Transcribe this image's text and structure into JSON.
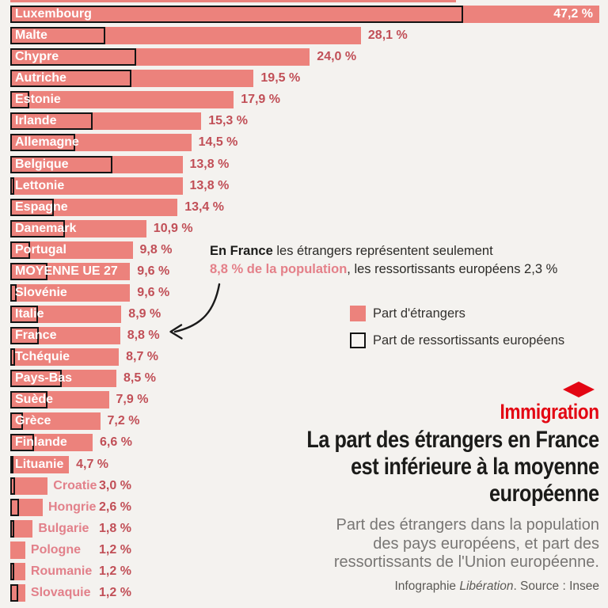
{
  "colors": {
    "background": "#f4f2ef",
    "bar_pink": "#ec827c",
    "bar_label_white": "#ffffff",
    "value_label": "#c14f57",
    "outline_black": "#141414",
    "small_country_label": "#e2808a",
    "accent_red": "#e30613",
    "title_black": "#1b1b19",
    "subtitle_gray": "#787674",
    "credit_gray": "#5b5955"
  },
  "chart_data": {
    "type": "bar",
    "orientation": "horizontal",
    "title": "Part des étrangers dans la population des pays européens, et part des ressortissants de l'Union européenne",
    "xlabel": "",
    "ylabel": "",
    "unit": "%",
    "xlim": [
      0,
      47.2
    ],
    "grid": false,
    "legend_position": "middle-right",
    "categories": [
      "Luxembourg",
      "Malte",
      "Chypre",
      "Autriche",
      "Estonie",
      "Irlande",
      "Allemagne",
      "Belgique",
      "Lettonie",
      "Espagne",
      "Danemark",
      "Portugal",
      "MOYENNE UE 27",
      "Slovénie",
      "Italie",
      "France",
      "Tchéquie",
      "Pays-Bas",
      "Suède",
      "Grèce",
      "Finlande",
      "Lituanie",
      "Croatie",
      "Hongrie",
      "Bulgarie",
      "Pologne",
      "Roumanie",
      "Slovaquie"
    ],
    "series": [
      {
        "name": "Part d'étrangers",
        "values": [
          47.2,
          28.1,
          24.0,
          19.5,
          17.9,
          15.3,
          14.5,
          13.8,
          13.8,
          13.4,
          10.9,
          9.8,
          9.6,
          9.6,
          8.9,
          8.8,
          8.7,
          8.5,
          7.9,
          7.2,
          6.6,
          4.7,
          3.0,
          2.6,
          1.8,
          1.2,
          1.2,
          1.2
        ]
      },
      {
        "name": "Part de ressortissants européens",
        "values": [
          36.3,
          7.6,
          10.1,
          9.7,
          1.5,
          6.6,
          5.2,
          8.2,
          0.3,
          3.5,
          4.4,
          1.6,
          3.0,
          0.5,
          2.2,
          2.3,
          0.4,
          4.1,
          3.0,
          1.0,
          1.9,
          0.2,
          0.4,
          0.7,
          0.3,
          null,
          0.3,
          0.6
        ],
        "note": "unlabeled outlined bars, values estimated from pixels"
      }
    ],
    "value_labels": [
      "47,2 %",
      "28,1 %",
      "24,0 %",
      "19,5 %",
      "17,9 %",
      "15,3 %",
      "14,5 %",
      "13,8 %",
      "13,8 %",
      "13,4 %",
      "10,9 %",
      "9,8 %",
      "9,6 %",
      "9,6 %",
      "8,9 %",
      "8,8 %",
      "8,7 %",
      "8,5 %",
      "7,9 %",
      "7,2 %",
      "6,6 %",
      "4,7 %",
      "3,0 %",
      "2,6 %",
      "1,8 %",
      "1,2 %",
      "1,2 %",
      "1,2 %"
    ],
    "label_inside": [
      true,
      true,
      true,
      true,
      true,
      true,
      true,
      true,
      true,
      true,
      true,
      true,
      true,
      true,
      true,
      true,
      true,
      true,
      true,
      true,
      true,
      true,
      false,
      false,
      false,
      false,
      false,
      false
    ],
    "value_inside": [
      true,
      false,
      false,
      false,
      false,
      false,
      false,
      false,
      false,
      false,
      false,
      false,
      false,
      false,
      false,
      false,
      false,
      false,
      false,
      false,
      false,
      false,
      false,
      false,
      false,
      false,
      false,
      false
    ]
  },
  "annotation": {
    "line1_bold": "En France",
    "line1_rest": " les étrangers représentent seulement",
    "line2_highlight": "8,8 % de la population",
    "line2_rest": ", les ressortissants européens 2,3 %"
  },
  "legend": {
    "items": [
      {
        "label": "Part d'étrangers",
        "swatch": "filled-pink"
      },
      {
        "label": "Part de ressortissants européens",
        "swatch": "black-outline"
      }
    ]
  },
  "header": {
    "kicker": "Immigration",
    "title_lines": [
      "La part des étrangers en France",
      "est inférieure à la moyenne",
      "européenne"
    ],
    "subtitle_lines": [
      "Part des étrangers dans la population",
      "des pays européens, et part des",
      "ressortissants de l'Union européenne."
    ],
    "credit_prefix": "Infographie ",
    "credit_italic": "Libération",
    "credit_suffix": ". Source : Insee"
  }
}
